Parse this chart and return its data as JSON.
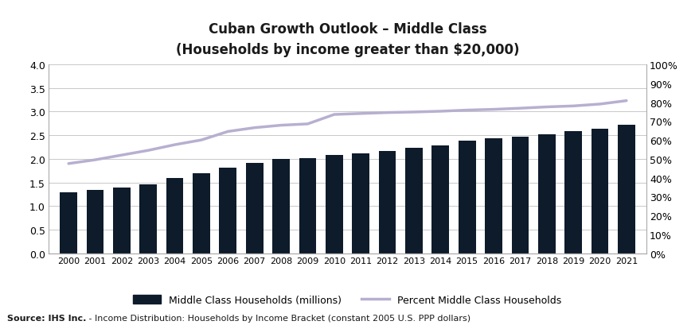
{
  "years": [
    2000,
    2001,
    2002,
    2003,
    2004,
    2005,
    2006,
    2007,
    2008,
    2009,
    2010,
    2011,
    2012,
    2013,
    2014,
    2015,
    2016,
    2017,
    2018,
    2019,
    2020,
    2021
  ],
  "households_millions": [
    1.3,
    1.35,
    1.4,
    1.46,
    1.6,
    1.7,
    1.82,
    1.92,
    2.0,
    2.02,
    2.08,
    2.12,
    2.17,
    2.23,
    2.28,
    2.38,
    2.43,
    2.47,
    2.52,
    2.58,
    2.63,
    2.72
  ],
  "percent_middle_class": [
    0.475,
    0.495,
    0.52,
    0.545,
    0.575,
    0.6,
    0.645,
    0.665,
    0.678,
    0.685,
    0.735,
    0.74,
    0.745,
    0.748,
    0.752,
    0.758,
    0.762,
    0.768,
    0.775,
    0.78,
    0.79,
    0.808
  ],
  "bar_color": "#0d1b2a",
  "line_color": "#b8afd0",
  "title_line1": "Cuban Growth Outlook – Middle Class",
  "title_line2": "(Households by income greater than $20,000)",
  "ylim_left": [
    0,
    4.0
  ],
  "ylim_right": [
    0,
    1.0
  ],
  "yticks_left": [
    0.0,
    0.5,
    1.0,
    1.5,
    2.0,
    2.5,
    3.0,
    3.5,
    4.0
  ],
  "yticks_right": [
    0.0,
    0.1,
    0.2,
    0.3,
    0.4,
    0.5,
    0.6,
    0.7,
    0.8,
    0.9,
    1.0
  ],
  "source_bold": "Source: IHS Inc.",
  "source_normal": " - Income Distribution: Households by Income Bracket (constant 2005 U.S. PPP dollars)",
  "legend_bar_label": "Middle Class Households (millions)",
  "legend_line_label": "Percent Middle Class Households",
  "background_color": "#ffffff",
  "grid_color": "#c8c8c8"
}
